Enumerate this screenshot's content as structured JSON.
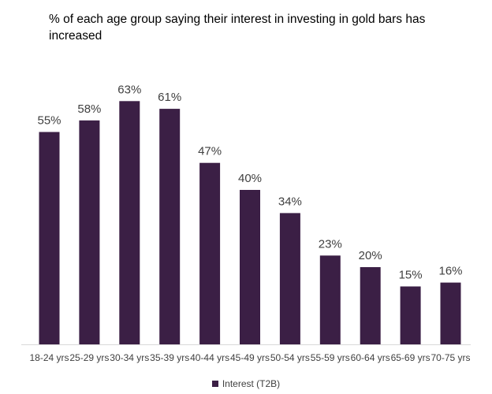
{
  "chart_data": {
    "type": "bar",
    "title": "% of each age group saying their interest in investing in gold bars has increased",
    "categories": [
      "18-24 yrs",
      "25-29 yrs",
      "30-34 yrs",
      "35-39 yrs",
      "40-44 yrs",
      "45-49 yrs",
      "50-54 yrs",
      "55-59 yrs",
      "60-64 yrs",
      "65-69 yrs",
      "70-75 yrs"
    ],
    "series": [
      {
        "name": "Interest (T2B)",
        "values": [
          55,
          58,
          63,
          61,
          47,
          40,
          34,
          23,
          20,
          15,
          16
        ]
      }
    ],
    "value_labels": [
      "55%",
      "58%",
      "63%",
      "61%",
      "47%",
      "40%",
      "34%",
      "23%",
      "20%",
      "15%",
      "16%"
    ],
    "ylim": [
      0,
      70
    ],
    "grid": false,
    "legend_position": "bottom",
    "colors": {
      "bar": "#3b1f45",
      "baseline": "#d9d9d9"
    }
  }
}
